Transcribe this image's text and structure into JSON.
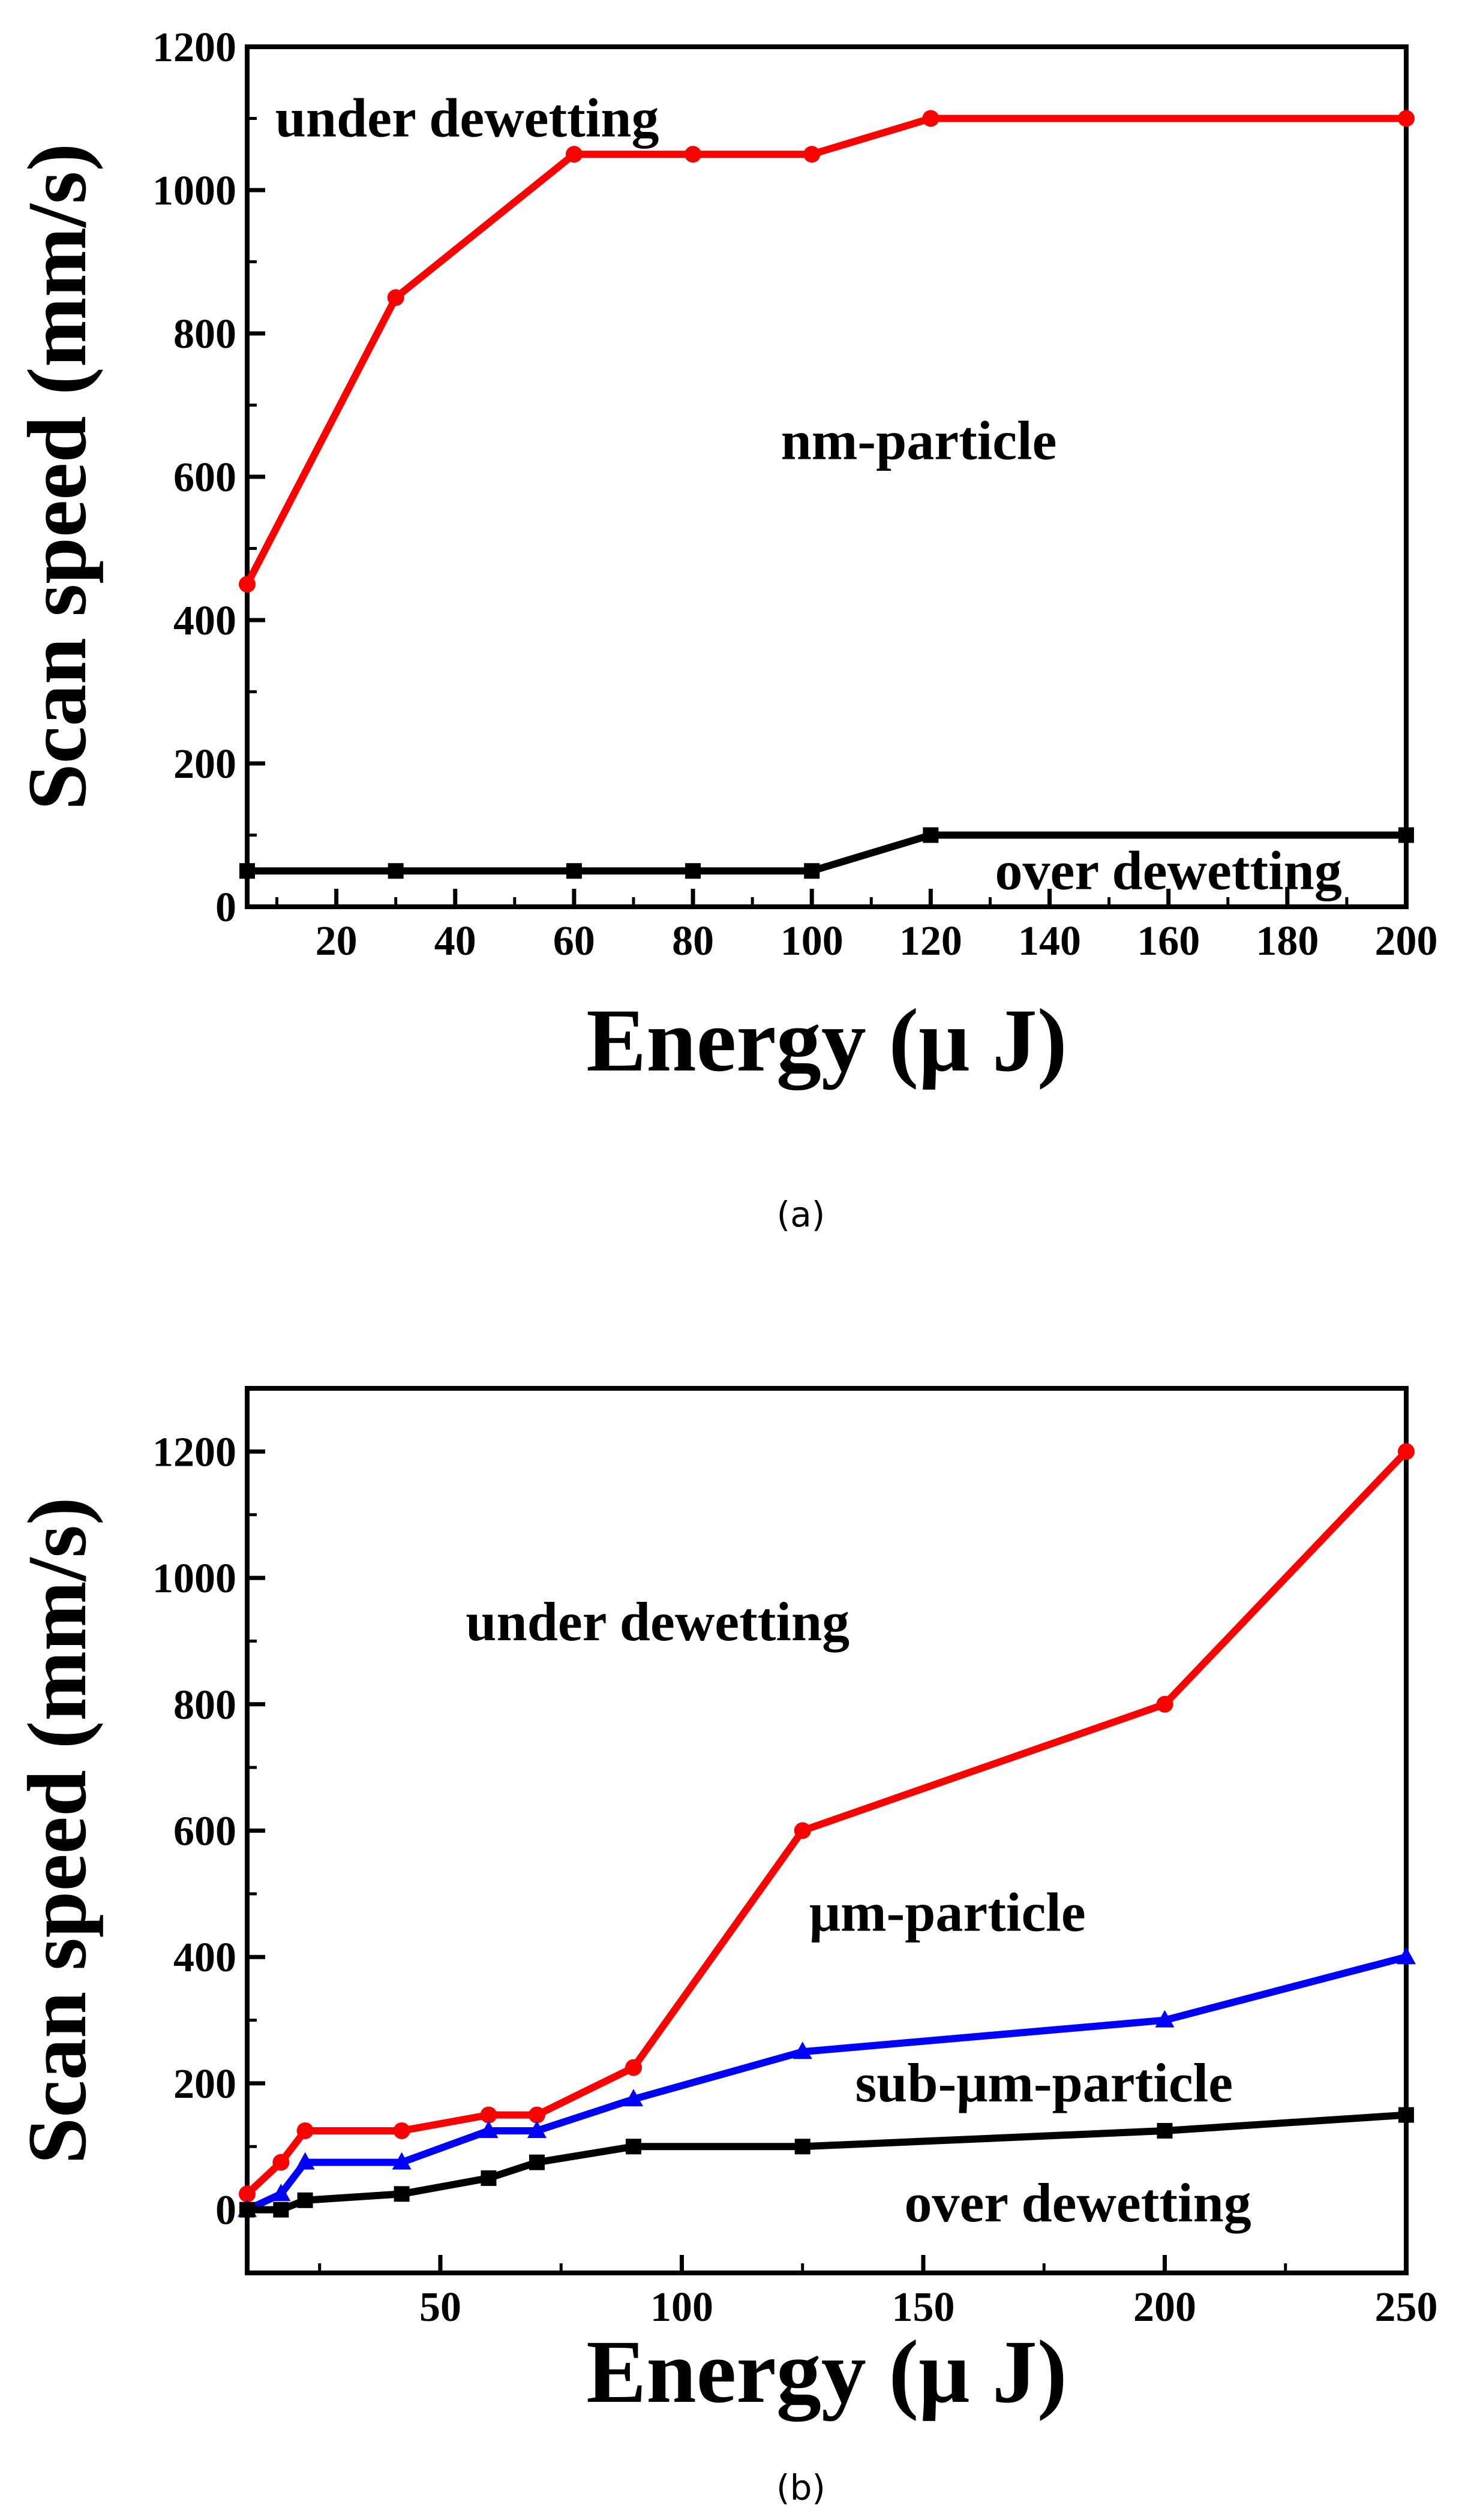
{
  "chart_data": [
    {
      "type": "line",
      "caption": "(a)",
      "xlabel": "Energy (μ J)",
      "ylabel": "Scan speed (mm/s)",
      "xlim": [
        5,
        200
      ],
      "ylim": [
        0,
        1200
      ],
      "xticks": [
        20,
        40,
        60,
        80,
        100,
        120,
        140,
        160,
        180,
        200
      ],
      "yticks": [
        0,
        200,
        400,
        600,
        800,
        1000,
        1200
      ],
      "series": [
        {
          "color": "#ff0000",
          "marker": "circle",
          "points": [
            [
              5,
              450
            ],
            [
              30,
              850
            ],
            [
              60,
              1050
            ],
            [
              80,
              1050
            ],
            [
              100,
              1050
            ],
            [
              120,
              1100
            ],
            [
              200,
              1100
            ]
          ]
        },
        {
          "color": "#000000",
          "marker": "square",
          "points": [
            [
              5,
              50
            ],
            [
              30,
              50
            ],
            [
              60,
              50
            ],
            [
              80,
              50
            ],
            [
              100,
              50
            ],
            [
              120,
              100
            ],
            [
              200,
              100
            ]
          ]
        }
      ],
      "annotations": [
        {
          "text": "under dewetting",
          "x": 42,
          "y": 1100
        },
        {
          "text": "nm-particle",
          "x": 118,
          "y": 650
        },
        {
          "text": "over dewetting",
          "x": 160,
          "y": 50
        }
      ]
    },
    {
      "type": "line",
      "caption": "(b)",
      "xlabel": "Energy (μ J)",
      "ylabel": "Scan speed (mm/s)",
      "xlim": [
        10,
        250
      ],
      "ylim": [
        -100,
        1300
      ],
      "xticks": [
        50,
        100,
        150,
        200,
        250
      ],
      "yticks": [
        0,
        200,
        400,
        600,
        800,
        1000,
        1200
      ],
      "series": [
        {
          "color": "#ff0000",
          "marker": "circle",
          "points": [
            [
              10,
              25
            ],
            [
              17,
              75
            ],
            [
              22,
              125
            ],
            [
              42,
              125
            ],
            [
              60,
              150
            ],
            [
              70,
              150
            ],
            [
              90,
              225
            ],
            [
              125,
              600
            ],
            [
              200,
              800
            ],
            [
              250,
              1200
            ]
          ]
        },
        {
          "color": "#0000ff",
          "marker": "triangle",
          "points": [
            [
              10,
              0
            ],
            [
              17,
              25
            ],
            [
              22,
              75
            ],
            [
              42,
              75
            ],
            [
              60,
              125
            ],
            [
              70,
              125
            ],
            [
              90,
              175
            ],
            [
              125,
              250
            ],
            [
              200,
              300
            ],
            [
              250,
              400
            ]
          ]
        },
        {
          "color": "#000000",
          "marker": "square",
          "points": [
            [
              10,
              0
            ],
            [
              17,
              0
            ],
            [
              22,
              15
            ],
            [
              42,
              25
            ],
            [
              60,
              50
            ],
            [
              70,
              75
            ],
            [
              90,
              100
            ],
            [
              125,
              100
            ],
            [
              200,
              125
            ],
            [
              250,
              150
            ]
          ]
        }
      ],
      "annotations": [
        {
          "text": "under dewetting",
          "x": 95,
          "y": 930
        },
        {
          "text": "μm-particle",
          "x": 155,
          "y": 470
        },
        {
          "text": "sub-μm-particle",
          "x": 175,
          "y": 200
        },
        {
          "text": "over dewetting",
          "x": 182,
          "y": 10
        }
      ]
    }
  ]
}
